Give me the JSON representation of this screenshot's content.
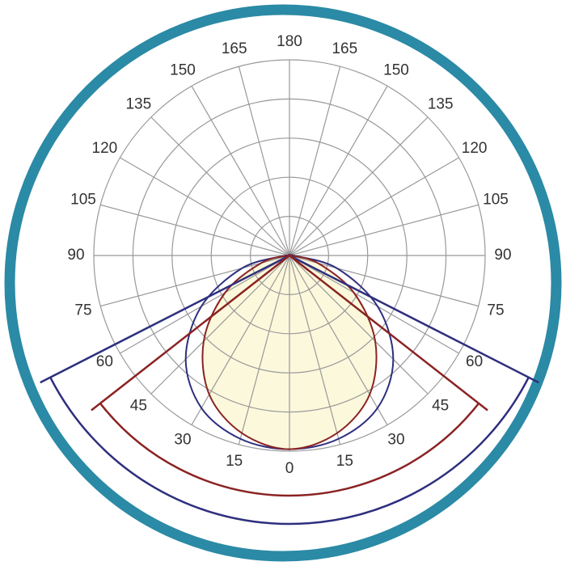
{
  "chart_data": {
    "type": "polar",
    "angle_labels_right": [
      0,
      15,
      30,
      45,
      60,
      75,
      90,
      105,
      120,
      135,
      150,
      165,
      180
    ],
    "angle_labels_left": [
      15,
      30,
      45,
      60,
      75,
      90,
      105,
      120,
      135,
      150,
      165
    ],
    "rlim": [
      0,
      100
    ],
    "rticks": [
      20,
      40,
      60,
      80,
      100
    ],
    "grid": true,
    "x": [
      -90,
      -75,
      -60,
      -45,
      -30,
      -15,
      0,
      15,
      30,
      45,
      60,
      75,
      90
    ],
    "series": [
      {
        "color": "#2e2f7e",
        "values": [
          2,
          25,
          52,
          75,
          90,
          97,
          99,
          97,
          90,
          75,
          52,
          25,
          2
        ],
        "beam_half_angle": 63
      },
      {
        "color": "#8b2323",
        "fill": "#fbf8dc",
        "values": [
          1,
          15,
          38,
          62,
          82,
          94,
          99,
          94,
          82,
          62,
          38,
          15,
          1
        ],
        "beam_half_angle": 52
      }
    ]
  }
}
